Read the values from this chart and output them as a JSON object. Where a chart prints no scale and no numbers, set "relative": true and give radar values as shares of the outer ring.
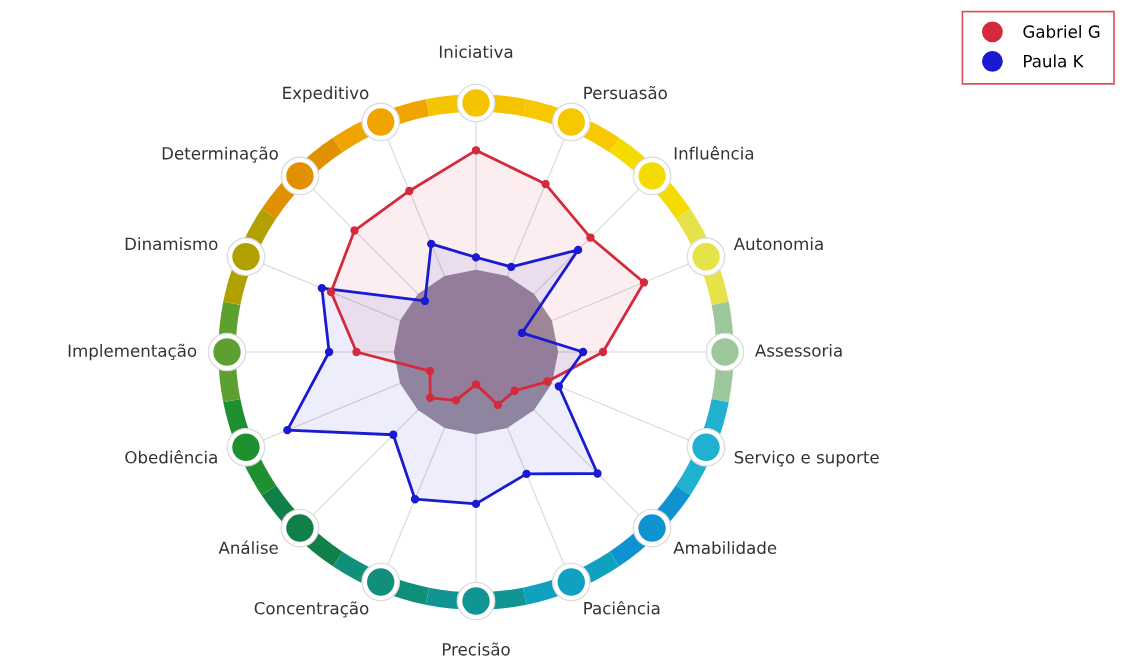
{
  "chart_data": {
    "type": "radar",
    "relative": true,
    "grid": "x",
    "legend": "top right",
    "marker": "circle",
    "categories": [
      "Iniciativa",
      "Persuasão",
      "Influência",
      "Autonomia",
      "Assessoria",
      "Serviço e suporte",
      "Amabilidade",
      "Paciência",
      "Precisão",
      "Concentração",
      "Análise",
      "Obediência",
      "Implementação",
      "Dinamismo",
      "Determinação",
      "Expeditivo"
    ],
    "series": [
      {
        "name": "Gabriel G",
        "color": "#d42a3c",
        "values": [
          0.81,
          0.73,
          0.65,
          0.73,
          0.51,
          0.31,
          0.22,
          0.23,
          0.13,
          0.21,
          0.26,
          0.2,
          0.48,
          0.63,
          0.69,
          0.7
        ]
      },
      {
        "name": "Paula K",
        "color": "#1a1ad0",
        "values": [
          0.38,
          0.37,
          0.58,
          0.2,
          0.43,
          0.36,
          0.69,
          0.53,
          0.61,
          0.64,
          0.47,
          0.82,
          0.59,
          0.67,
          0.29,
          0.47
        ]
      }
    ]
  }
}
